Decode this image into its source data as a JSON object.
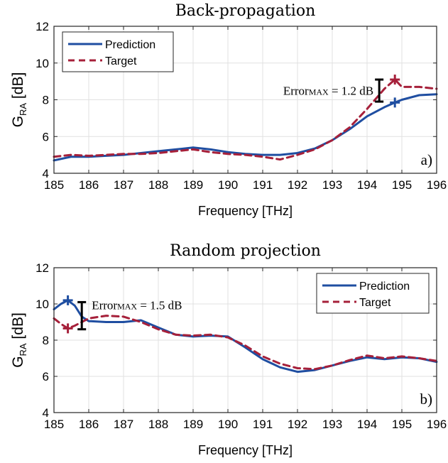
{
  "chart_data": [
    {
      "type": "line",
      "title": "Back-propagation",
      "xlabel": "Frequency [THz]",
      "ylabel_main": "G",
      "ylabel_sub": "RA",
      "ylabel_unit": " [dB]",
      "xlim": [
        185,
        196
      ],
      "ylim": [
        4,
        12
      ],
      "xticks": [
        "185",
        "186",
        "187",
        "188",
        "189",
        "190",
        "191",
        "192",
        "193",
        "194",
        "195",
        "196"
      ],
      "yticks": [
        "4",
        "6",
        "8",
        "10",
        "12"
      ],
      "grid": true,
      "legend_position": "top-left",
      "series": [
        {
          "name": "Prediction",
          "color": "#1f4ea1",
          "style": "solid",
          "x": [
            185,
            185.5,
            186,
            186.5,
            187,
            187.5,
            188,
            188.5,
            189,
            189.5,
            190,
            190.5,
            191,
            191.5,
            192,
            192.5,
            193,
            193.5,
            194,
            194.5,
            194.8,
            195,
            195.5,
            196
          ],
          "y": [
            4.7,
            4.9,
            4.9,
            4.95,
            5.0,
            5.1,
            5.2,
            5.3,
            5.4,
            5.3,
            5.15,
            5.05,
            5.0,
            5.0,
            5.1,
            5.35,
            5.8,
            6.4,
            7.1,
            7.6,
            7.85,
            8.0,
            8.25,
            8.3
          ]
        },
        {
          "name": "Target",
          "color": "#a6203a",
          "style": "dashed",
          "x": [
            185,
            185.5,
            186,
            186.5,
            187,
            187.5,
            188,
            188.5,
            189,
            189.5,
            190,
            190.5,
            191,
            191.5,
            192,
            192.5,
            193,
            193.5,
            194,
            194.5,
            194.8,
            195,
            195.5,
            196
          ],
          "y": [
            4.9,
            5.0,
            4.95,
            5.0,
            5.05,
            5.05,
            5.1,
            5.2,
            5.3,
            5.15,
            5.05,
            5.0,
            4.9,
            4.75,
            5.0,
            5.3,
            5.8,
            6.5,
            7.5,
            8.6,
            9.1,
            8.7,
            8.7,
            8.6
          ]
        }
      ],
      "markers": [
        {
          "series": "Prediction",
          "x": 194.8,
          "y": 7.85
        },
        {
          "series": "Target",
          "x": 194.8,
          "y": 9.1
        }
      ],
      "error_bar": {
        "x": 194.35,
        "y_low": 7.9,
        "y_high": 9.1
      },
      "annotation": {
        "main": "Error",
        "sub": "MAX",
        "rest": " = 1.2 dB"
      },
      "panel_label": "a)"
    },
    {
      "type": "line",
      "title": "Random projection",
      "xlabel": "Frequency [THz]",
      "ylabel_main": "G",
      "ylabel_sub": "RA",
      "ylabel_unit": " [dB]",
      "xlim": [
        185,
        196
      ],
      "ylim": [
        4,
        12
      ],
      "xticks": [
        "185",
        "186",
        "187",
        "188",
        "189",
        "190",
        "191",
        "192",
        "193",
        "194",
        "195",
        "196"
      ],
      "yticks": [
        "4",
        "6",
        "8",
        "10",
        "12"
      ],
      "grid": true,
      "legend_position": "top-right",
      "series": [
        {
          "name": "Prediction",
          "color": "#1f4ea1",
          "style": "solid",
          "x": [
            185,
            185.2,
            185.4,
            185.6,
            185.8,
            186,
            186.5,
            187,
            187.5,
            188,
            188.5,
            189,
            189.5,
            190,
            190.5,
            191,
            191.5,
            192,
            192.5,
            193,
            193.5,
            194,
            194.5,
            195,
            195.5,
            196
          ],
          "y": [
            9.7,
            10.0,
            10.2,
            9.9,
            9.3,
            9.05,
            9.0,
            9.0,
            9.1,
            8.7,
            8.3,
            8.2,
            8.25,
            8.2,
            7.6,
            6.95,
            6.5,
            6.25,
            6.35,
            6.6,
            6.85,
            7.05,
            6.95,
            7.05,
            7.0,
            6.8
          ]
        },
        {
          "name": "Target",
          "color": "#a6203a",
          "style": "dashed",
          "x": [
            185,
            185.2,
            185.4,
            185.6,
            185.8,
            186,
            186.5,
            187,
            187.5,
            188,
            188.5,
            189,
            189.5,
            190,
            190.5,
            191,
            191.5,
            192,
            192.5,
            193,
            193.5,
            194,
            194.5,
            195,
            195.5,
            196
          ],
          "y": [
            9.2,
            8.9,
            8.65,
            8.8,
            9.0,
            9.2,
            9.35,
            9.3,
            9.0,
            8.6,
            8.3,
            8.25,
            8.3,
            8.15,
            7.7,
            7.1,
            6.7,
            6.45,
            6.4,
            6.6,
            6.9,
            7.15,
            7.0,
            7.1,
            7.0,
            6.85
          ]
        }
      ],
      "markers": [
        {
          "series": "Prediction",
          "x": 185.4,
          "y": 10.2
        },
        {
          "series": "Target",
          "x": 185.4,
          "y": 8.65
        }
      ],
      "error_bar": {
        "x": 185.8,
        "y_low": 8.6,
        "y_high": 10.1
      },
      "annotation": {
        "main": "Error",
        "sub": "MAX",
        "rest": " = 1.5 dB"
      },
      "panel_label": "b)"
    }
  ]
}
